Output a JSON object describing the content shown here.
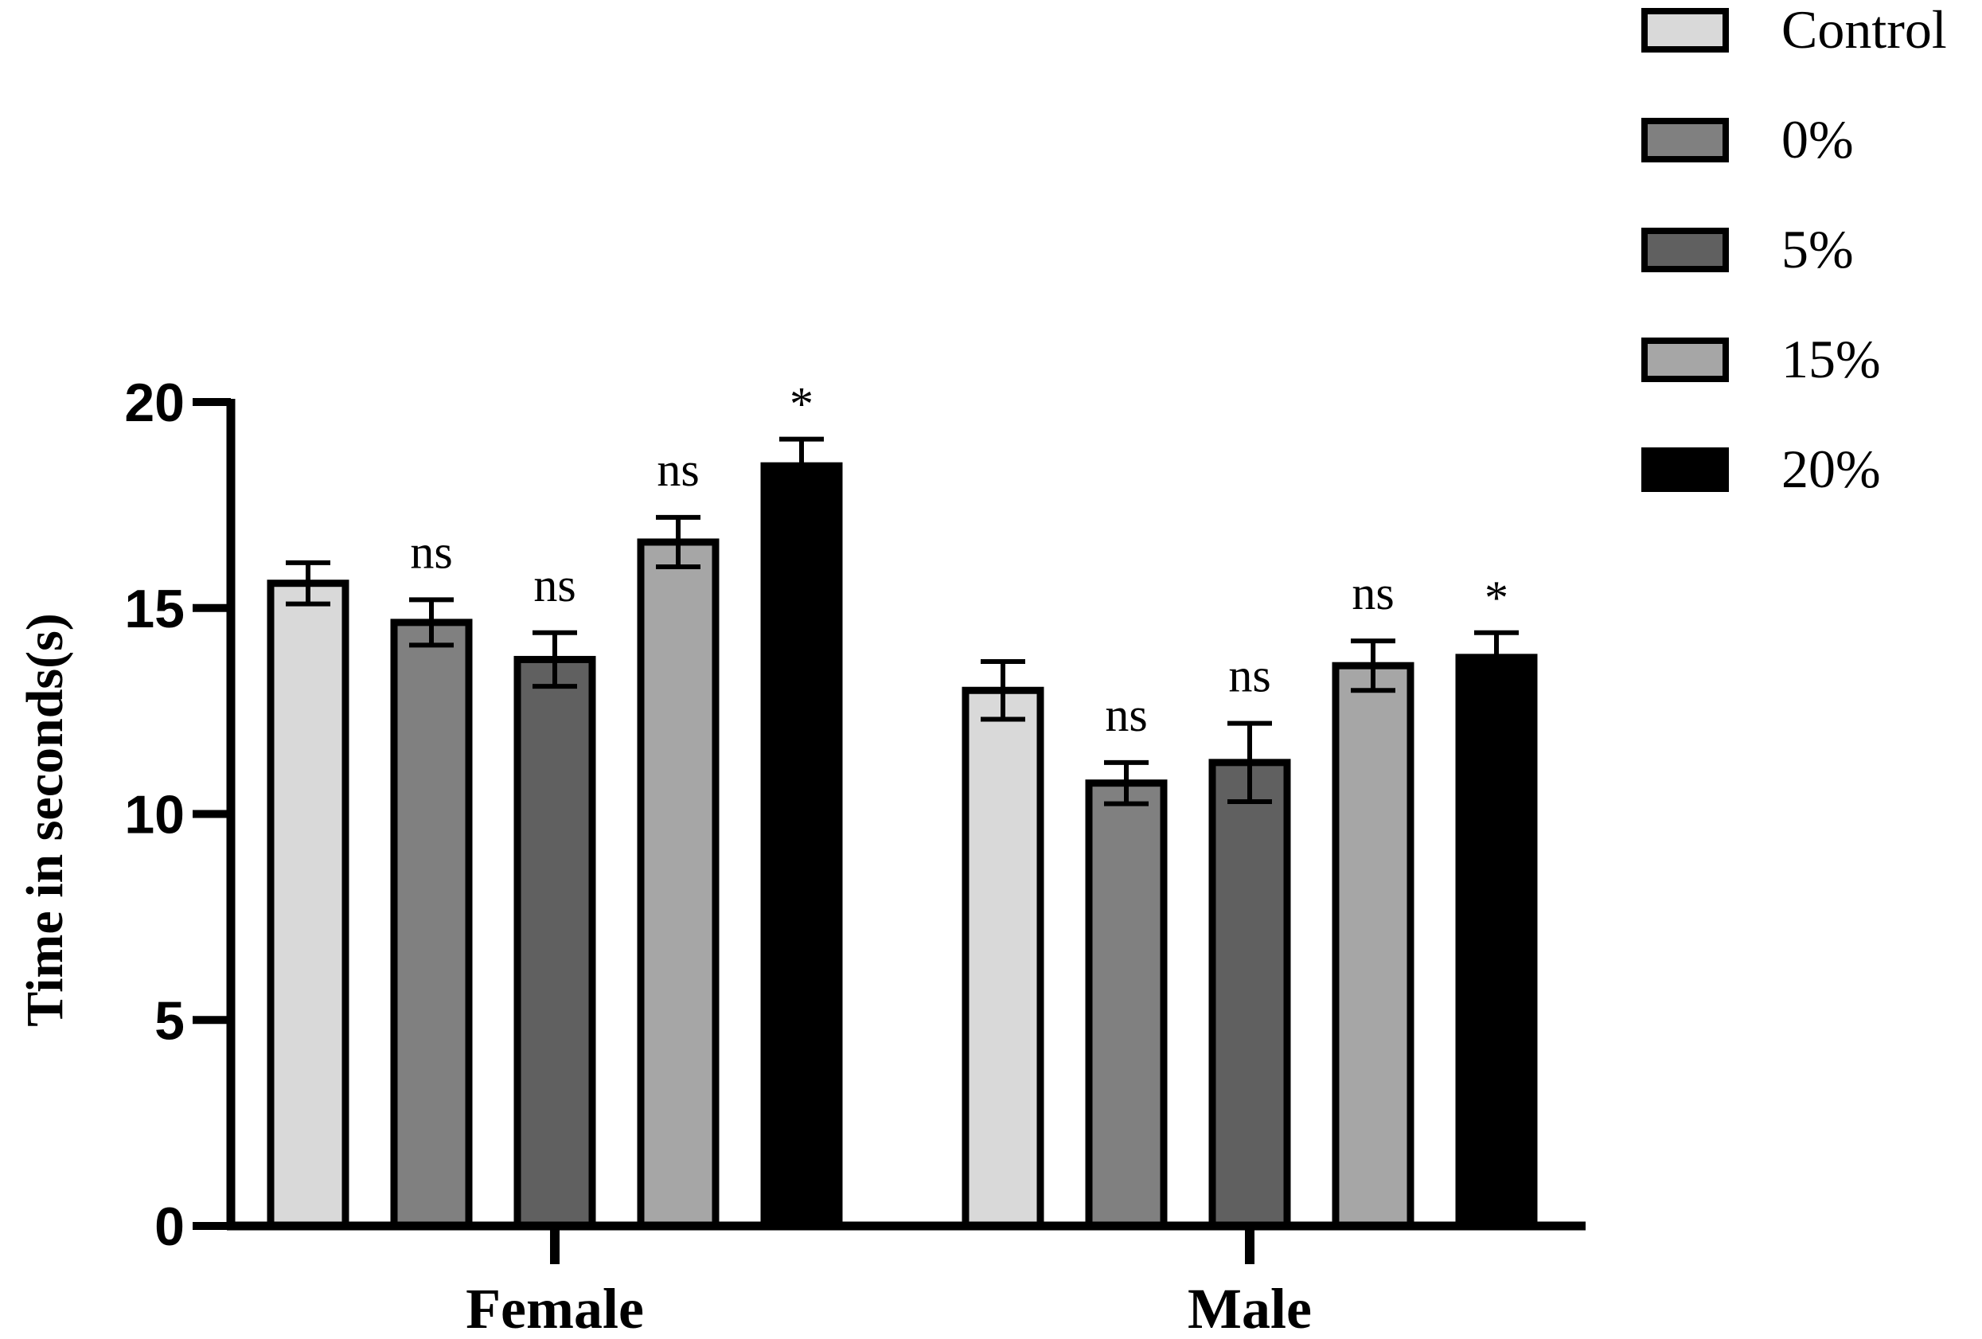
{
  "chart_data": {
    "type": "bar",
    "title": "",
    "xlabel": "",
    "ylabel": "Time in seconds(s)",
    "ylim": [
      0,
      20
    ],
    "yticks": [
      0,
      5,
      10,
      15,
      20
    ],
    "categories": [
      "Female",
      "Male"
    ],
    "legend_position": "top-right",
    "series": [
      {
        "name": "Control",
        "color": "#d9d9d9",
        "values": [
          15.6,
          13.0
        ],
        "errors": [
          0.5,
          0.7
        ],
        "annotations": [
          "",
          ""
        ]
      },
      {
        "name": "0%",
        "color": "#808080",
        "values": [
          14.65,
          10.75
        ],
        "errors": [
          0.55,
          0.5
        ],
        "annotations": [
          "ns",
          "ns"
        ]
      },
      {
        "name": "5%",
        "color": "#606060",
        "values": [
          13.75,
          11.25
        ],
        "errors": [
          0.65,
          0.95
        ],
        "annotations": [
          "ns",
          "ns"
        ]
      },
      {
        "name": "15%",
        "color": "#a6a6a6",
        "values": [
          16.6,
          13.6
        ],
        "errors": [
          0.6,
          0.6
        ],
        "annotations": [
          "ns",
          "ns"
        ]
      },
      {
        "name": "20%",
        "color": "#000000",
        "values": [
          18.45,
          13.8
        ],
        "errors": [
          0.65,
          0.6
        ],
        "annotations": [
          "*",
          "*"
        ]
      }
    ]
  }
}
